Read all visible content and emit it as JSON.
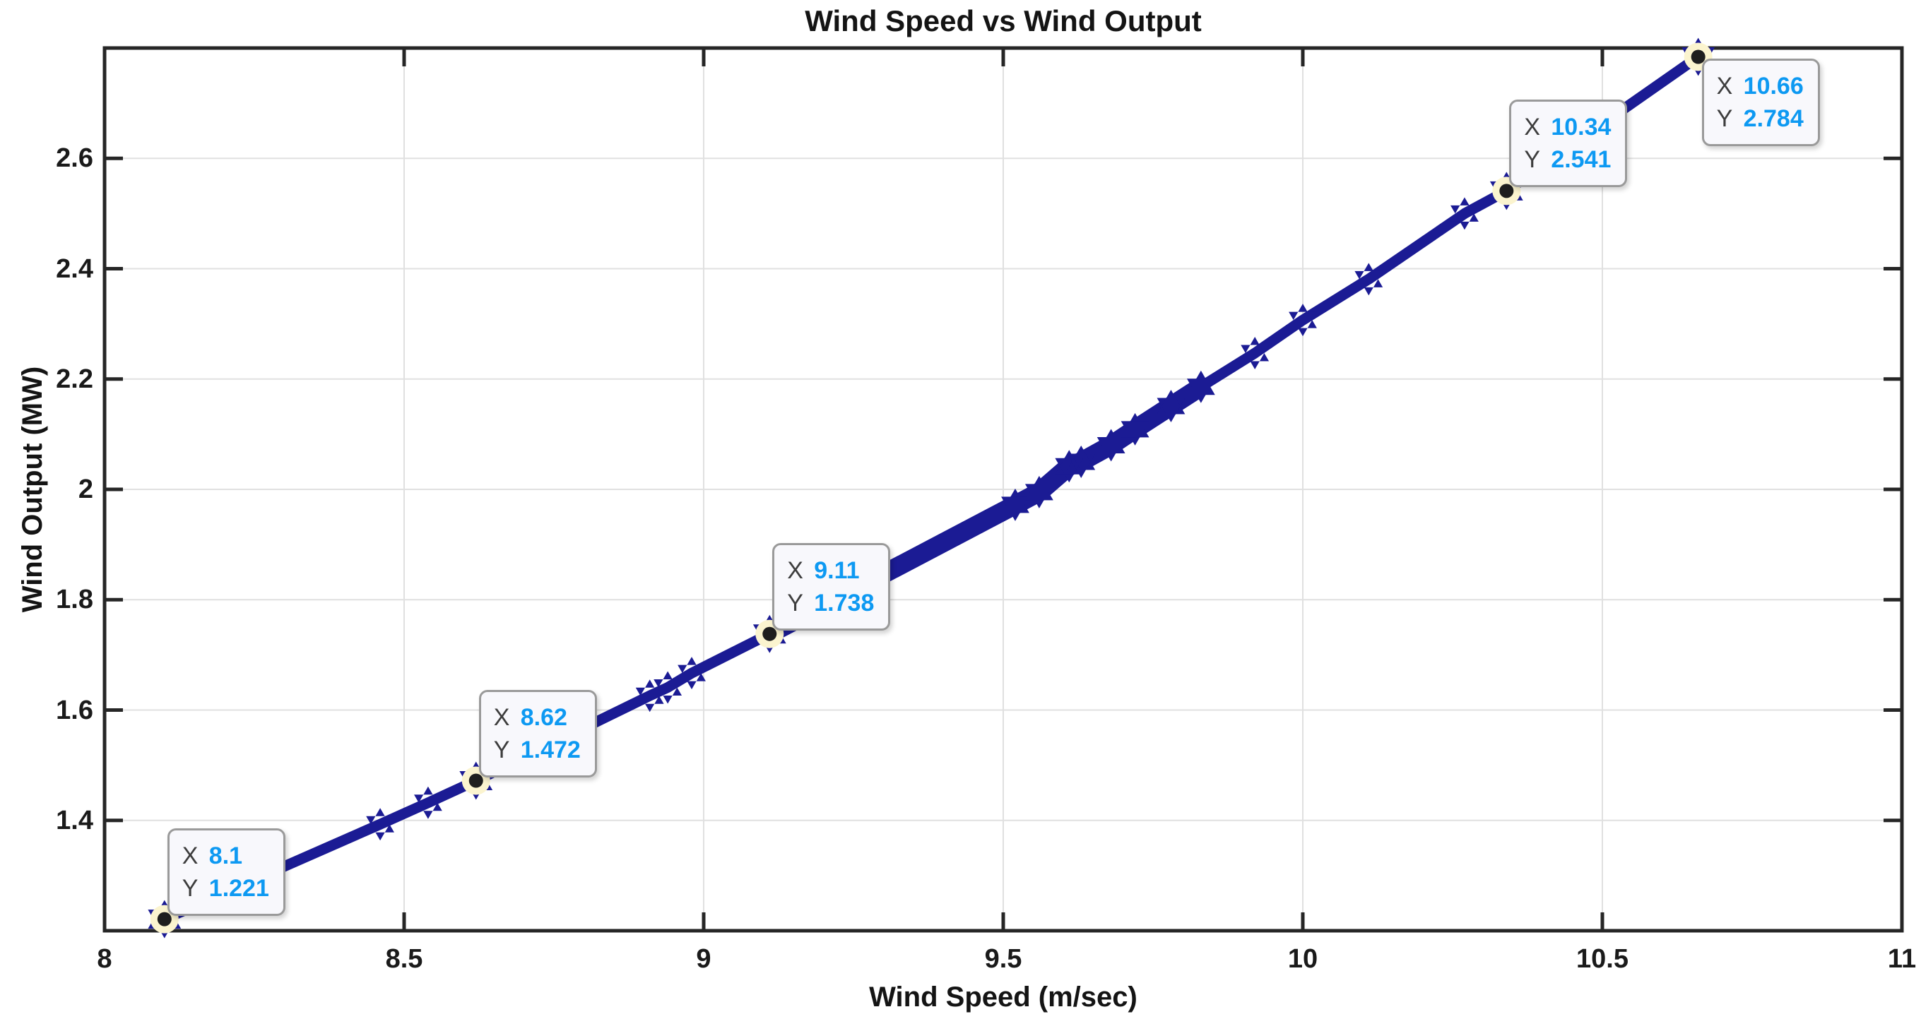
{
  "figure_title": "Wind Speed vs Wind Output",
  "chart_data": {
    "type": "line",
    "title": "Wind Speed vs Wind Output",
    "xlabel": "Wind Speed (m/sec)",
    "ylabel": "Wind Output (MW)",
    "xlim": [
      8,
      11
    ],
    "ylim": [
      1.2,
      2.8
    ],
    "xticks": [
      8,
      8.5,
      9,
      9.5,
      10,
      10.5,
      11
    ],
    "xtick_labels": [
      "8",
      "8.5",
      "9",
      "9.5",
      "10",
      "10.5",
      "11"
    ],
    "yticks": [
      1.4,
      1.6,
      1.8,
      2,
      2.2,
      2.4,
      2.6
    ],
    "ytick_labels": [
      "1.4",
      "1.6",
      "1.8",
      "2",
      "2.2",
      "2.4",
      "2.6"
    ],
    "grid": true,
    "legend": "none",
    "marker": "hexagram",
    "series": [
      {
        "x": [
          8.1,
          8.46,
          8.54,
          8.62,
          8.91,
          8.94,
          8.98,
          9.11,
          9.52,
          9.56,
          9.61,
          9.63,
          9.68,
          9.72,
          9.78,
          9.83,
          9.92,
          10.0,
          10.11,
          10.27,
          10.34,
          10.66
        ],
        "y": [
          1.221,
          1.393,
          1.432,
          1.472,
          1.626,
          1.641,
          1.667,
          1.738,
          1.972,
          1.995,
          2.042,
          2.05,
          2.08,
          2.109,
          2.151,
          2.186,
          2.247,
          2.307,
          2.381,
          2.5,
          2.541,
          2.784
        ]
      }
    ],
    "thick_band_xrange": [
      9.11,
      9.83
    ],
    "datatips": [
      {
        "x": 8.1,
        "y": 1.221,
        "x_text": "8.1",
        "y_text": "1.221",
        "side": "above"
      },
      {
        "x": 8.62,
        "y": 1.472,
        "x_text": "8.62",
        "y_text": "1.472",
        "side": "above"
      },
      {
        "x": 9.11,
        "y": 1.738,
        "x_text": "9.11",
        "y_text": "1.738",
        "side": "above"
      },
      {
        "x": 10.34,
        "y": 2.541,
        "x_text": "10.34",
        "y_text": "2.541",
        "side": "above"
      },
      {
        "x": 10.66,
        "y": 2.784,
        "x_text": "10.66",
        "y_text": "2.784",
        "side": "below"
      }
    ],
    "datatip_prefix_x": "X",
    "datatip_prefix_y": "Y"
  },
  "colors": {
    "line": "#1b1b94",
    "grid": "#e0e0e0",
    "axis": "#262626",
    "datatip_value": "#0d99f2",
    "datatip_prefix": "#3d3d3d",
    "datatip_background": "#f8f8fc",
    "datatip_border": "#9a9a9a",
    "anchor_dot": "#1e1e1e",
    "anchor_halo": "#fbf4cf",
    "background": "#ffffff"
  }
}
